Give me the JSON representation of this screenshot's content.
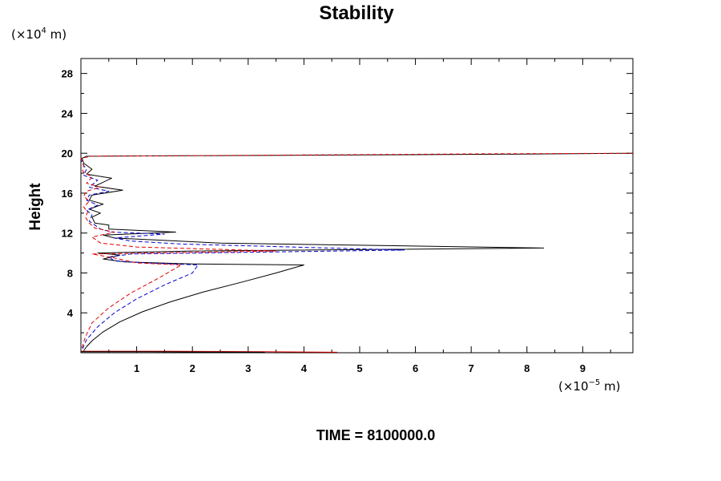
{
  "chart_data": {
    "type": "line",
    "title": "Stability",
    "ylabel": "Height",
    "y_unit_base": "(×10",
    "y_unit_exp": "4",
    "y_unit_tail": " m)",
    "x_unit_base": "(×10",
    "x_unit_exp": "−5",
    "x_unit_tail": " m)",
    "xlim": [
      0,
      9.9
    ],
    "ylim": [
      0,
      29.5
    ],
    "x_ticks": [
      1,
      2,
      3,
      4,
      5,
      6,
      7,
      8,
      9
    ],
    "y_ticks": [
      4,
      8,
      12,
      16,
      20,
      24,
      28
    ],
    "footer": "TIME = 8100000.0",
    "grid": false,
    "series": [
      {
        "color": "#000000",
        "dash": "solid",
        "points": [
          [
            0.05,
            0.2
          ],
          [
            0.1,
            0.6
          ],
          [
            0.2,
            1.2
          ],
          [
            0.4,
            2.1
          ],
          [
            0.7,
            3.1
          ],
          [
            1.1,
            4.1
          ],
          [
            1.6,
            5.1
          ],
          [
            2.2,
            6.1
          ],
          [
            2.9,
            7.1
          ],
          [
            3.5,
            8.0
          ],
          [
            4.0,
            8.8
          ],
          [
            2.0,
            8.9
          ],
          [
            0.8,
            9.1
          ],
          [
            0.4,
            9.4
          ],
          [
            0.7,
            9.8
          ],
          [
            0.3,
            10.0
          ],
          [
            2.0,
            10.2
          ],
          [
            8.3,
            10.5
          ],
          [
            2.5,
            11.0
          ],
          [
            0.6,
            11.5
          ],
          [
            0.4,
            11.8
          ],
          [
            1.7,
            12.1
          ],
          [
            0.5,
            12.4
          ],
          [
            0.5,
            12.8
          ],
          [
            0.25,
            13.0
          ],
          [
            0.2,
            13.6
          ],
          [
            0.35,
            14.0
          ],
          [
            0.15,
            14.4
          ],
          [
            0.4,
            14.9
          ],
          [
            0.15,
            15.3
          ],
          [
            0.2,
            15.8
          ],
          [
            0.75,
            16.3
          ],
          [
            0.25,
            16.7
          ],
          [
            0.55,
            17.5
          ],
          [
            0.1,
            17.9
          ],
          [
            0.2,
            18.4
          ],
          [
            0.05,
            19.0
          ],
          [
            0.02,
            19.5
          ],
          [
            0.1,
            19.7
          ],
          [
            7.5,
            19.9
          ],
          [
            9.9,
            20.0
          ]
        ]
      },
      {
        "color": "#0000cc",
        "dash": "dashed",
        "points": [
          [
            0.03,
            0.4
          ],
          [
            0.1,
            1.3
          ],
          [
            0.3,
            2.6
          ],
          [
            0.6,
            4.0
          ],
          [
            1.0,
            5.4
          ],
          [
            1.5,
            6.8
          ],
          [
            2.0,
            8.0
          ],
          [
            2.1,
            8.8
          ],
          [
            1.2,
            9.0
          ],
          [
            0.6,
            9.2
          ],
          [
            0.5,
            9.6
          ],
          [
            0.9,
            9.9
          ],
          [
            5.8,
            10.3
          ],
          [
            1.8,
            10.9
          ],
          [
            0.9,
            11.2
          ],
          [
            0.6,
            11.5
          ],
          [
            1.5,
            11.9
          ],
          [
            0.55,
            12.1
          ],
          [
            0.35,
            12.4
          ],
          [
            0.25,
            12.8
          ],
          [
            0.15,
            13.2
          ],
          [
            0.2,
            13.8
          ],
          [
            0.1,
            14.3
          ],
          [
            0.3,
            14.8
          ],
          [
            0.1,
            15.3
          ],
          [
            0.15,
            15.8
          ],
          [
            0.5,
            16.2
          ],
          [
            0.15,
            16.6
          ],
          [
            0.3,
            17.3
          ],
          [
            0.05,
            17.8
          ],
          [
            0.1,
            18.4
          ],
          [
            0.02,
            19.0
          ],
          [
            0.0,
            19.5
          ]
        ]
      },
      {
        "color": "#e00000",
        "dash": "dashed",
        "points": [
          [
            0.02,
            0.5
          ],
          [
            0.08,
            1.6
          ],
          [
            0.2,
            3.0
          ],
          [
            0.5,
            4.5
          ],
          [
            0.9,
            6.0
          ],
          [
            1.4,
            7.5
          ],
          [
            1.8,
            8.8
          ],
          [
            1.0,
            9.0
          ],
          [
            0.6,
            9.5
          ],
          [
            0.2,
            9.9
          ],
          [
            3.5,
            10.2
          ],
          [
            1.0,
            10.6
          ],
          [
            0.35,
            11.0
          ],
          [
            0.2,
            11.6
          ],
          [
            0.6,
            12.1
          ],
          [
            0.25,
            12.5
          ],
          [
            0.15,
            13.0
          ],
          [
            0.08,
            13.6
          ],
          [
            0.12,
            14.1
          ],
          [
            0.05,
            14.6
          ],
          [
            0.15,
            15.2
          ],
          [
            0.05,
            15.7
          ],
          [
            0.1,
            16.2
          ],
          [
            0.35,
            16.6
          ],
          [
            0.1,
            17.0
          ],
          [
            0.2,
            17.6
          ],
          [
            0.03,
            18.2
          ],
          [
            0.05,
            18.8
          ],
          [
            0.0,
            19.5
          ],
          [
            0.2,
            19.7
          ],
          [
            7.5,
            19.95
          ],
          [
            9.9,
            20.0
          ]
        ]
      },
      {
        "color": "#e00000",
        "dash": "solid",
        "points": [
          [
            0.0,
            0.15
          ],
          [
            1.5,
            0.15
          ],
          [
            3.3,
            0.1
          ],
          [
            4.6,
            0.05
          ]
        ]
      },
      {
        "color": "#000000",
        "dash": "solid",
        "points": [
          [
            0.0,
            0.1
          ],
          [
            1.2,
            0.1
          ],
          [
            3.3,
            0.05
          ]
        ]
      }
    ]
  }
}
